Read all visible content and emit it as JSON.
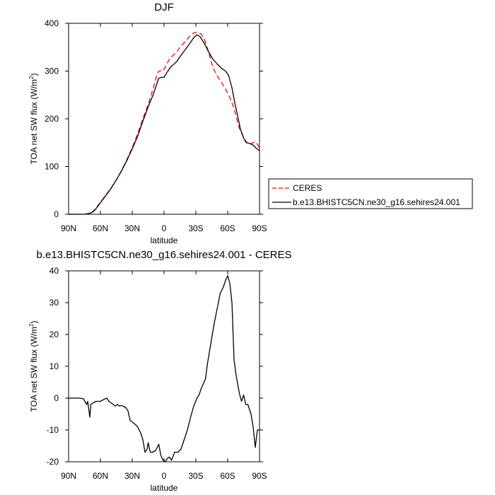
{
  "chart_data": [
    {
      "type": "line",
      "title": "DJF",
      "xlabel": "latitude",
      "ylabel": "TOA net SW flux (W/m",
      "ylabel_sup": "2",
      "ylabel_close": ")",
      "xlim": [
        90,
        -90
      ],
      "ylim": [
        0,
        400
      ],
      "x_ticks": [
        90,
        60,
        30,
        0,
        -30,
        -60,
        -90
      ],
      "x_tick_labels": [
        "90N",
        "60N",
        "30N",
        "0",
        "30S",
        "60S",
        "90S"
      ],
      "y_ticks": [
        0,
        100,
        200,
        300,
        400
      ],
      "y_tick_labels": [
        "0",
        "100",
        "200",
        "300",
        "400"
      ],
      "grid": false,
      "legend_position": "right, outside plot",
      "series": [
        {
          "name": "CERES",
          "color": "#ff0000",
          "dash": true,
          "points": [
            [
              90,
              0
            ],
            [
              80,
              0
            ],
            [
              75,
              0
            ],
            [
              70,
              2
            ],
            [
              67,
              6
            ],
            [
              64,
              14
            ],
            [
              60,
              25
            ],
            [
              55,
              40
            ],
            [
              50,
              55
            ],
            [
              45,
              72
            ],
            [
              40,
              92
            ],
            [
              35,
              115
            ],
            [
              30,
              140
            ],
            [
              25,
              168
            ],
            [
              20,
              200
            ],
            [
              15,
              230
            ],
            [
              10,
              265
            ],
            [
              7,
              290
            ],
            [
              5,
              300
            ],
            [
              3,
              301
            ],
            [
              1,
              300
            ],
            [
              -2,
              312
            ],
            [
              -5,
              325
            ],
            [
              -8,
              332
            ],
            [
              -12,
              340
            ],
            [
              -15,
              350
            ],
            [
              -20,
              362
            ],
            [
              -25,
              375
            ],
            [
              -28,
              380
            ],
            [
              -31,
              381
            ],
            [
              -35,
              378
            ],
            [
              -38,
              367
            ],
            [
              -42,
              340
            ],
            [
              -46,
              308
            ],
            [
              -50,
              290
            ],
            [
              -54,
              277
            ],
            [
              -58,
              262
            ],
            [
              -62,
              245
            ],
            [
              -66,
              222
            ],
            [
              -69,
              196
            ],
            [
              -71,
              180
            ],
            [
              -74,
              166
            ],
            [
              -77,
              151
            ],
            [
              -80,
              147
            ],
            [
              -83,
              149
            ],
            [
              -86,
              152
            ],
            [
              -88,
              147
            ],
            [
              -90,
              138
            ]
          ]
        },
        {
          "name": "b.e13.BHISTC5CN.ne30_g16.sehires24.001",
          "color": "#000000",
          "dash": false,
          "points": [
            [
              90,
              0
            ],
            [
              80,
              0
            ],
            [
              75,
              0
            ],
            [
              70,
              2
            ],
            [
              67,
              5
            ],
            [
              64,
              12
            ],
            [
              60,
              24
            ],
            [
              55,
              39
            ],
            [
              50,
              54
            ],
            [
              45,
              72
            ],
            [
              40,
              91
            ],
            [
              35,
              113
            ],
            [
              30,
              137
            ],
            [
              25,
              163
            ],
            [
              20,
              195
            ],
            [
              15,
              225
            ],
            [
              10,
              252
            ],
            [
              7,
              272
            ],
            [
              5,
              285
            ],
            [
              2,
              287
            ],
            [
              0,
              287
            ],
            [
              -3,
              298
            ],
            [
              -6,
              308
            ],
            [
              -9,
              314
            ],
            [
              -12,
              320
            ],
            [
              -15,
              330
            ],
            [
              -20,
              345
            ],
            [
              -25,
              360
            ],
            [
              -28,
              370
            ],
            [
              -31,
              376
            ],
            [
              -34,
              372
            ],
            [
              -38,
              358
            ],
            [
              -42,
              340
            ],
            [
              -46,
              325
            ],
            [
              -50,
              315
            ],
            [
              -54,
              306
            ],
            [
              -58,
              300
            ],
            [
              -61,
              290
            ],
            [
              -64,
              265
            ],
            [
              -67,
              230
            ],
            [
              -70,
              200
            ],
            [
              -72,
              178
            ],
            [
              -75,
              160
            ],
            [
              -78,
              150
            ],
            [
              -81,
              148
            ],
            [
              -84,
              145
            ],
            [
              -87,
              138
            ],
            [
              -90,
              133
            ]
          ]
        }
      ]
    },
    {
      "type": "line",
      "title": "b.e13.BHISTC5CN.ne30_g16.sehires24.001 - CERES",
      "xlabel": "latitude",
      "ylabel": "TOA net SW flux (W/m",
      "ylabel_sup": "2",
      "ylabel_close": ")",
      "xlim": [
        90,
        -90
      ],
      "ylim": [
        -20,
        40
      ],
      "x_ticks": [
        90,
        60,
        30,
        0,
        -30,
        -60,
        -90
      ],
      "x_tick_labels": [
        "90N",
        "60N",
        "30N",
        "0",
        "30S",
        "60S",
        "90S"
      ],
      "y_ticks": [
        -20,
        -10,
        0,
        10,
        20,
        30,
        40
      ],
      "y_tick_labels": [
        "-20",
        "-10",
        "0",
        "10",
        "20",
        "30",
        "40"
      ],
      "grid": false,
      "series": [
        {
          "color": "#000000",
          "dash": false,
          "points": [
            [
              90,
              0
            ],
            [
              80,
              0
            ],
            [
              76,
              -0.2
            ],
            [
              73,
              -2
            ],
            [
              72,
              -1
            ],
            [
              70,
              -6
            ],
            [
              69,
              -2
            ],
            [
              67,
              -1.5
            ],
            [
              64,
              -1
            ],
            [
              60,
              -1
            ],
            [
              56,
              -0.3
            ],
            [
              54,
              0
            ],
            [
              52,
              -1
            ],
            [
              48,
              -2
            ],
            [
              46,
              -2.5
            ],
            [
              44,
              -2
            ],
            [
              42,
              -2.5
            ],
            [
              40,
              -2.3
            ],
            [
              36,
              -3
            ],
            [
              34,
              -4
            ],
            [
              32,
              -7
            ],
            [
              28,
              -8
            ],
            [
              25,
              -9
            ],
            [
              22,
              -11
            ],
            [
              20,
              -13
            ],
            [
              18,
              -17
            ],
            [
              16,
              -16
            ],
            [
              15,
              -14
            ],
            [
              13,
              -17
            ],
            [
              11,
              -17
            ],
            [
              8,
              -16.5
            ],
            [
              5,
              -14.5
            ],
            [
              3,
              -18
            ],
            [
              1,
              -19.5
            ],
            [
              -1,
              -20
            ],
            [
              -3,
              -19
            ],
            [
              -5,
              -18.5
            ],
            [
              -7,
              -19.5
            ],
            [
              -10,
              -17
            ],
            [
              -13,
              -17
            ],
            [
              -16,
              -16
            ],
            [
              -19,
              -13
            ],
            [
              -22,
              -10
            ],
            [
              -25,
              -6
            ],
            [
              -28,
              -2.5
            ],
            [
              -31,
              0
            ],
            [
              -33,
              1
            ],
            [
              -35,
              3
            ],
            [
              -37,
              4.5
            ],
            [
              -39,
              6
            ],
            [
              -41,
              11
            ],
            [
              -44,
              17
            ],
            [
              -47,
              23
            ],
            [
              -50,
              28
            ],
            [
              -53,
              33
            ],
            [
              -56,
              35
            ],
            [
              -58,
              37
            ],
            [
              -60,
              38.5
            ],
            [
              -62,
              36
            ],
            [
              -64,
              30
            ],
            [
              -66,
              12
            ],
            [
              -68,
              7
            ],
            [
              -71,
              1.5
            ],
            [
              -73,
              -1
            ],
            [
              -75,
              1
            ],
            [
              -77,
              -2
            ],
            [
              -79,
              -2
            ],
            [
              -82,
              -5
            ],
            [
              -84,
              -9
            ],
            [
              -86,
              -15.5
            ],
            [
              -88,
              -10
            ],
            [
              -90,
              -10
            ]
          ]
        }
      ]
    }
  ]
}
